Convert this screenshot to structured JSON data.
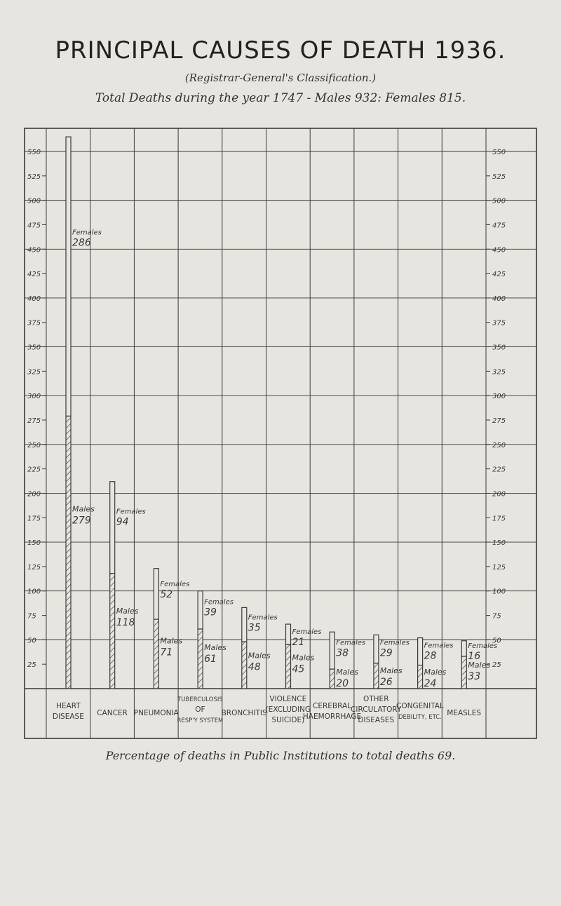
{
  "header": {
    "title": "PRINCIPAL CAUSES OF DEATH 1936.",
    "subtitle": "(Registrar-General's Classification.)",
    "totals": "Total Deaths during the year 1747 - Males 932: Females 815."
  },
  "footnote": "Percentage of deaths in Public Institutions to total deaths 69.",
  "colors": {
    "paper": "#e6e5df",
    "ink": "#3a3a3a",
    "hatch": "#555555"
  },
  "chart_data": {
    "type": "bar",
    "title": "PRINCIPAL CAUSES OF DEATH 1936.",
    "ylim": [
      0,
      550
    ],
    "yticks": [
      25,
      50,
      75,
      100,
      125,
      150,
      175,
      200,
      225,
      250,
      275,
      300,
      325,
      350,
      375,
      400,
      425,
      450,
      475,
      500,
      525,
      550
    ],
    "grid": true,
    "categories": [
      "Heart Disease",
      "Cancer",
      "Pneumonia",
      "Tuberculosis of Resp'y System",
      "Bronchitis",
      "Violence (excluding Suicide)",
      "Cerebral Haemorrhage",
      "Other Circulatory Diseases",
      "Congenital Debility, etc.",
      "Measles"
    ],
    "series": [
      {
        "name": "Males",
        "values": [
          279,
          118,
          71,
          61,
          48,
          45,
          20,
          26,
          24,
          33
        ]
      },
      {
        "name": "Females",
        "values": [
          286,
          94,
          52,
          39,
          35,
          21,
          38,
          29,
          28,
          16
        ]
      }
    ],
    "bar_labels": {
      "males": "Males",
      "females": "Females",
      "male_short": "Males",
      "female_short": "Females"
    }
  }
}
